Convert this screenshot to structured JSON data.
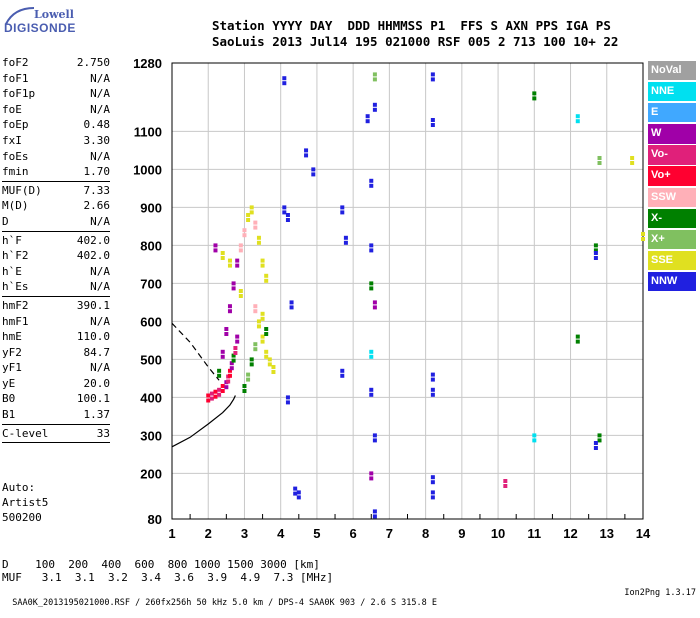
{
  "logo": {
    "line1": "Lowell",
    "line2": "DIGISONDE"
  },
  "header": {
    "line1": "Station YYYY DAY  DDD HHMMSS P1  FFS S AXN PPS IGA PS",
    "line2": "SaoLuis 2013 Jul14 195 021000 RSF 005 2 713 100 10+ 22"
  },
  "params": [
    {
      "name": "foF2",
      "value": "2.750"
    },
    {
      "name": "foF1",
      "value": "N/A"
    },
    {
      "name": "foF1p",
      "value": "N/A"
    },
    {
      "name": "foE",
      "value": "N/A"
    },
    {
      "name": "foEp",
      "value": "0.48"
    },
    {
      "name": "fxI",
      "value": "3.30"
    },
    {
      "name": "foEs",
      "value": "N/A"
    },
    {
      "name": "fmin",
      "value": "1.70",
      "sep": true
    },
    {
      "name": "MUF(D)",
      "value": "7.33"
    },
    {
      "name": "M(D)",
      "value": "2.66"
    },
    {
      "name": "D",
      "value": "N/A",
      "sep": true
    },
    {
      "name": "h`F",
      "value": "402.0"
    },
    {
      "name": "h`F2",
      "value": "402.0"
    },
    {
      "name": "h`E",
      "value": "N/A"
    },
    {
      "name": "h`Es",
      "value": "N/A",
      "sep": true
    },
    {
      "name": "hmF2",
      "value": "390.1"
    },
    {
      "name": "hmF1",
      "value": "N/A"
    },
    {
      "name": "hmE",
      "value": "110.0"
    },
    {
      "name": "yF2",
      "value": "84.7"
    },
    {
      "name": "yF1",
      "value": "N/A"
    },
    {
      "name": "yE",
      "value": "20.0"
    },
    {
      "name": "B0",
      "value": "100.1"
    },
    {
      "name": "B1",
      "value": "1.37",
      "sep": true
    },
    {
      "name": "C-level",
      "value": "33",
      "sep": true
    }
  ],
  "auto": {
    "line1": "Auto:",
    "line2": "Artist5",
    "line3": "500200"
  },
  "muf_table": {
    "line1": "D    100  200  400  600  800 1000 1500 3000 [km]",
    "line2": "MUF   3.1  3.1  3.2  3.4  3.6  3.9  4.9  7.3 [MHz]"
  },
  "footer": {
    "left": "SAA0K_2013195021000.RSF / 260fx256h 50 kHz 5.0 km / DPS-4 SAA0K 903 / 2.6 S 315.8 E",
    "right": "Ion2Png 1.3.17"
  },
  "legend": [
    {
      "label": "NoVal",
      "color": "#a0a0a0"
    },
    {
      "label": "NNE",
      "color": "#00e0f0"
    },
    {
      "label": "E",
      "color": "#40a8ff"
    },
    {
      "label": "W",
      "color": "#a000a8"
    },
    {
      "label": "Vo-",
      "color": "#e0207a"
    },
    {
      "label": "Vo+",
      "color": "#ff0030"
    },
    {
      "label": "SSW",
      "color": "#ffb0b8"
    },
    {
      "label": "X-",
      "color": "#008000"
    },
    {
      "label": "X+",
      "color": "#80c060"
    },
    {
      "label": "SSE",
      "color": "#e0e020"
    },
    {
      "label": "NNW",
      "color": "#2020e0"
    }
  ],
  "chart_data": {
    "type": "scatter",
    "xlim": [
      1,
      14
    ],
    "ylim": [
      80,
      1280
    ],
    "x_ticks": [
      1,
      2,
      3,
      4,
      5,
      6,
      7,
      8,
      9,
      10,
      11,
      12,
      13,
      14
    ],
    "y_ticks": [
      80,
      200,
      300,
      400,
      500,
      600,
      700,
      800,
      900,
      1000,
      1100,
      1280
    ],
    "grid": true,
    "profile_curve": {
      "x": [
        1.0,
        1.5,
        2.0,
        2.4,
        2.6,
        2.7,
        2.75
      ],
      "y": [
        270,
        295,
        330,
        360,
        380,
        395,
        405
      ]
    },
    "profile_dashed": {
      "x": [
        1.0,
        1.5,
        2.0,
        2.3
      ],
      "y": [
        595,
        545,
        480,
        445
      ]
    },
    "trace_points": [
      {
        "x": 2.0,
        "y": 405,
        "dir": "Vo+"
      },
      {
        "x": 2.1,
        "y": 410,
        "dir": "Vo-"
      },
      {
        "x": 2.2,
        "y": 415,
        "dir": "Vo+"
      },
      {
        "x": 2.3,
        "y": 420,
        "dir": "Vo-"
      },
      {
        "x": 2.4,
        "y": 430,
        "dir": "Vo+"
      },
      {
        "x": 2.5,
        "y": 440,
        "dir": "W"
      },
      {
        "x": 2.55,
        "y": 455,
        "dir": "Vo-"
      },
      {
        "x": 2.6,
        "y": 470,
        "dir": "Vo+"
      },
      {
        "x": 2.65,
        "y": 490,
        "dir": "W"
      },
      {
        "x": 2.7,
        "y": 510,
        "dir": "X-"
      },
      {
        "x": 2.75,
        "y": 530,
        "dir": "Vo-"
      },
      {
        "x": 2.8,
        "y": 560,
        "dir": "W"
      },
      {
        "x": 2.3,
        "y": 470,
        "dir": "X-"
      },
      {
        "x": 2.4,
        "y": 520,
        "dir": "W"
      },
      {
        "x": 2.5,
        "y": 580,
        "dir": "W"
      },
      {
        "x": 2.6,
        "y": 640,
        "dir": "W"
      },
      {
        "x": 2.7,
        "y": 700,
        "dir": "W"
      },
      {
        "x": 2.8,
        "y": 760,
        "dir": "W"
      },
      {
        "x": 2.9,
        "y": 800,
        "dir": "SSW"
      },
      {
        "x": 3.0,
        "y": 840,
        "dir": "SSW"
      },
      {
        "x": 3.1,
        "y": 880,
        "dir": "SSE"
      },
      {
        "x": 3.2,
        "y": 900,
        "dir": "SSE"
      },
      {
        "x": 3.3,
        "y": 860,
        "dir": "SSW"
      },
      {
        "x": 3.4,
        "y": 820,
        "dir": "SSE"
      },
      {
        "x": 3.5,
        "y": 760,
        "dir": "SSE"
      },
      {
        "x": 3.6,
        "y": 720,
        "dir": "SSE"
      },
      {
        "x": 3.3,
        "y": 640,
        "dir": "SSW"
      },
      {
        "x": 3.4,
        "y": 600,
        "dir": "SSE"
      },
      {
        "x": 3.5,
        "y": 560,
        "dir": "SSE"
      },
      {
        "x": 3.6,
        "y": 520,
        "dir": "SSE"
      },
      {
        "x": 3.7,
        "y": 500,
        "dir": "SSE"
      },
      {
        "x": 3.8,
        "y": 480,
        "dir": "SSE"
      },
      {
        "x": 3.0,
        "y": 430,
        "dir": "X-"
      },
      {
        "x": 3.1,
        "y": 460,
        "dir": "X+"
      },
      {
        "x": 3.2,
        "y": 500,
        "dir": "X-"
      },
      {
        "x": 3.3,
        "y": 540,
        "dir": "X+"
      },
      {
        "x": 3.6,
        "y": 580,
        "dir": "X-"
      },
      {
        "x": 3.5,
        "y": 620,
        "dir": "SSE"
      },
      {
        "x": 2.9,
        "y": 680,
        "dir": "SSE"
      },
      {
        "x": 2.6,
        "y": 760,
        "dir": "SSE"
      },
      {
        "x": 2.4,
        "y": 780,
        "dir": "SSE"
      },
      {
        "x": 2.2,
        "y": 800,
        "dir": "W"
      },
      {
        "x": 4.1,
        "y": 900,
        "dir": "NNW"
      },
      {
        "x": 4.2,
        "y": 880,
        "dir": "NNW"
      },
      {
        "x": 4.3,
        "y": 650,
        "dir": "NNW"
      },
      {
        "x": 4.2,
        "y": 400,
        "dir": "NNW"
      },
      {
        "x": 4.4,
        "y": 160,
        "dir": "NNW"
      },
      {
        "x": 4.5,
        "y": 150,
        "dir": "NNW"
      },
      {
        "x": 4.1,
        "y": 1240,
        "dir": "NNW"
      },
      {
        "x": 4.7,
        "y": 1050,
        "dir": "NNW"
      },
      {
        "x": 4.9,
        "y": 1000,
        "dir": "NNW"
      },
      {
        "x": 5.7,
        "y": 900,
        "dir": "NNW"
      },
      {
        "x": 5.8,
        "y": 820,
        "dir": "NNW"
      },
      {
        "x": 5.7,
        "y": 470,
        "dir": "NNW"
      },
      {
        "x": 6.4,
        "y": 1140,
        "dir": "NNW"
      },
      {
        "x": 6.5,
        "y": 970,
        "dir": "NNW"
      },
      {
        "x": 6.5,
        "y": 800,
        "dir": "NNW"
      },
      {
        "x": 6.5,
        "y": 700,
        "dir": "X-"
      },
      {
        "x": 6.6,
        "y": 650,
        "dir": "W"
      },
      {
        "x": 6.5,
        "y": 520,
        "dir": "NNE"
      },
      {
        "x": 6.5,
        "y": 420,
        "dir": "NNW"
      },
      {
        "x": 6.6,
        "y": 300,
        "dir": "NNW"
      },
      {
        "x": 6.5,
        "y": 200,
        "dir": "W"
      },
      {
        "x": 6.6,
        "y": 100,
        "dir": "NNW"
      },
      {
        "x": 6.6,
        "y": 1250,
        "dir": "X+"
      },
      {
        "x": 6.6,
        "y": 1170,
        "dir": "NNW"
      },
      {
        "x": 8.2,
        "y": 1250,
        "dir": "NNW"
      },
      {
        "x": 8.2,
        "y": 1130,
        "dir": "NNW"
      },
      {
        "x": 8.2,
        "y": 460,
        "dir": "NNW"
      },
      {
        "x": 8.2,
        "y": 420,
        "dir": "NNW"
      },
      {
        "x": 8.2,
        "y": 190,
        "dir": "NNW"
      },
      {
        "x": 8.2,
        "y": 150,
        "dir": "NNW"
      },
      {
        "x": 11.0,
        "y": 1200,
        "dir": "X-"
      },
      {
        "x": 12.2,
        "y": 1140,
        "dir": "NNE"
      },
      {
        "x": 12.7,
        "y": 800,
        "dir": "X-"
      },
      {
        "x": 12.7,
        "y": 780,
        "dir": "NNW"
      },
      {
        "x": 12.8,
        "y": 1030,
        "dir": "X+"
      },
      {
        "x": 12.8,
        "y": 300,
        "dir": "X-"
      },
      {
        "x": 12.7,
        "y": 280,
        "dir": "NNW"
      },
      {
        "x": 13.7,
        "y": 1030,
        "dir": "SSE"
      },
      {
        "x": 14.0,
        "y": 830,
        "dir": "SSE"
      },
      {
        "x": 10.2,
        "y": 180,
        "dir": "Vo-"
      },
      {
        "x": 11.0,
        "y": 300,
        "dir": "NNE"
      },
      {
        "x": 12.2,
        "y": 560,
        "dir": "X-"
      }
    ]
  }
}
